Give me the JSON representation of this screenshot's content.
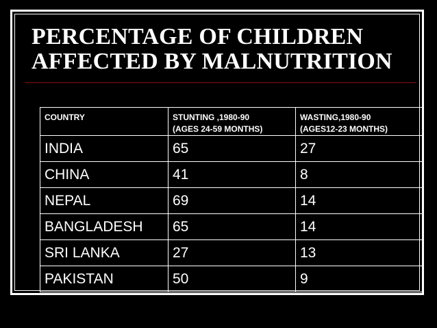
{
  "slide": {
    "title_line1": "PERCENTAGE OF CHILDREN",
    "title_line2": "AFFECTED BY MALNUTRITION"
  },
  "table": {
    "headers": [
      {
        "line1": "COUNTRY",
        "line2": ""
      },
      {
        "line1": "STUNTING ,1980-90",
        "line2": "(AGES 24-59 MONTHS)"
      },
      {
        "line1": "WASTING,1980-90",
        "line2": "(AGES12-23 MONTHS)"
      }
    ],
    "rows": [
      {
        "country": "INDIA",
        "stunting": "65",
        "wasting": "27"
      },
      {
        "country": "CHINA",
        "stunting": "41",
        "wasting": "8"
      },
      {
        "country": "NEPAL",
        "stunting": "69",
        "wasting": "14"
      },
      {
        "country": "BANGLADESH",
        "stunting": "65",
        "wasting": "14"
      },
      {
        "country": "SRI LANKA",
        "stunting": "27",
        "wasting": "13"
      },
      {
        "country": "PAKISTAN",
        "stunting": "50",
        "wasting": "9"
      }
    ]
  },
  "colors": {
    "background": "#000000",
    "text": "#ffffff",
    "rule": "#8a1010"
  }
}
